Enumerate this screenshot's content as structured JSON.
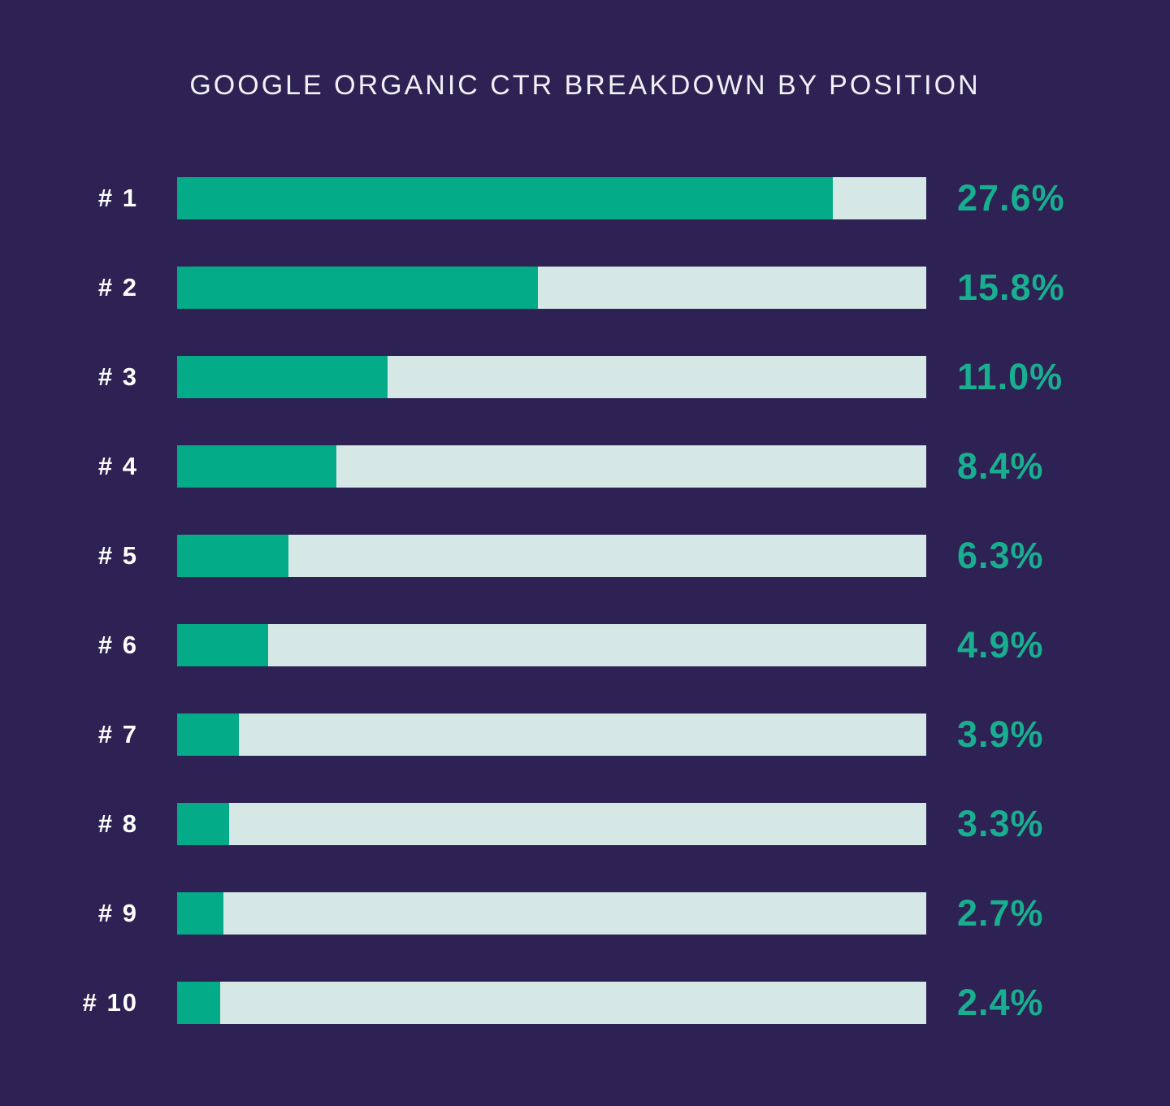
{
  "chart_data": {
    "type": "bar",
    "orientation": "horizontal",
    "title": "GOOGLE ORGANIC CTR BREAKDOWN BY POSITION",
    "categories": [
      "# 1",
      "# 2",
      "# 3",
      "# 4",
      "# 5",
      "# 6",
      "# 7",
      "# 8",
      "# 9",
      "# 10"
    ],
    "values": [
      27.6,
      15.8,
      11.0,
      8.4,
      6.3,
      4.9,
      3.9,
      3.3,
      2.7,
      2.4
    ],
    "value_labels": [
      "27.6%",
      "15.8%",
      "11.0%",
      "8.4%",
      "6.3%",
      "4.9%",
      "3.9%",
      "3.3%",
      "2.7%",
      "2.4%"
    ],
    "track_fill_percent": [
      87.5,
      48.2,
      28.1,
      21.3,
      14.9,
      12.1,
      8.2,
      6.9,
      6.2,
      5.8
    ],
    "xlabel": "",
    "ylabel": "",
    "legend": "none",
    "grid": false,
    "colors": {
      "background": "#2D2253",
      "bar_fill": "#03AB88",
      "bar_track": "#D6E8E6",
      "category_label": "#FFFFFF",
      "value_label": "#19AE8F",
      "title": "#F1F0F6"
    }
  }
}
